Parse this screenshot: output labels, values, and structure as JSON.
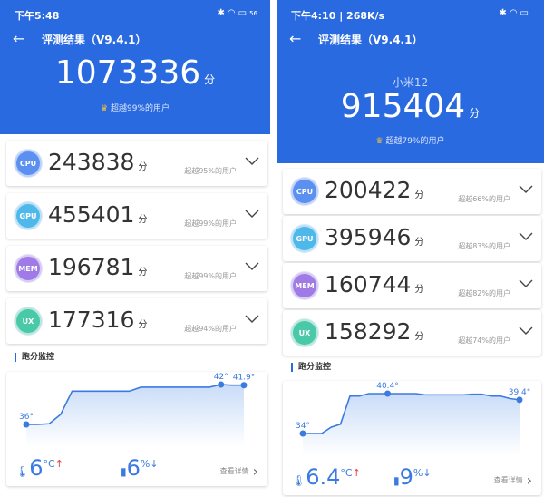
{
  "colors": {
    "header": "#2a6ae0",
    "cpu": "#5b8ff0",
    "gpu": "#4fb8ea",
    "mem": "#a07be6",
    "ux": "#49c9a8",
    "line": "#3b7ae0"
  },
  "panels": [
    {
      "status": {
        "time": "下午5:48",
        "icons": "bluetooth-icon sim-icon wifi-icon battery-icon",
        "battery": "56"
      },
      "title": "评测结果（V9.4.1）",
      "model": "",
      "total": "1073336",
      "unit": "分",
      "rank": "超越99%的用户",
      "items": [
        {
          "badge": "CPU",
          "score": "243838",
          "unit": "分",
          "pct": "超越95%的用户"
        },
        {
          "badge": "GPU",
          "score": "455401",
          "unit": "分",
          "pct": "超越99%的用户"
        },
        {
          "badge": "MEM",
          "score": "196781",
          "unit": "分",
          "pct": "超越99%的用户"
        },
        {
          "badge": "UX",
          "score": "177316",
          "unit": "分",
          "pct": "超越94%的用户"
        }
      ],
      "monitor": {
        "title": "跑分监控",
        "labels": [
          "36°",
          "42°",
          "41.9°"
        ],
        "temps": [
          36,
          36,
          36.1,
          37.5,
          41,
          41,
          41,
          41,
          41,
          41,
          41.6,
          41.6,
          41.6,
          41.6,
          41.6,
          41.6,
          41.6,
          42,
          41.9,
          41.9
        ],
        "labeled": [
          0,
          17,
          19
        ],
        "temp_rise": "6",
        "temp_unit": "°C",
        "battery_drop": "6",
        "battery_unit": "%",
        "detail": "查看详情"
      }
    },
    {
      "status": {
        "time": "下午4:10 | 268K/s",
        "icons": "alarm-icon bluetooth-icon signal-icon signal-icon wifi-icon battery-icon"
      },
      "title": "评测结果（V9.4.1）",
      "model": "小米12",
      "total": "915404",
      "unit": "分",
      "rank": "超越79%的用户",
      "items": [
        {
          "badge": "CPU",
          "score": "200422",
          "unit": "分",
          "pct": "超越66%的用户"
        },
        {
          "badge": "GPU",
          "score": "395946",
          "unit": "分",
          "pct": "超越83%的用户"
        },
        {
          "badge": "MEM",
          "score": "160744",
          "unit": "分",
          "pct": "超越82%的用户"
        },
        {
          "badge": "UX",
          "score": "158292",
          "unit": "分",
          "pct": "超越74%的用户"
        }
      ],
      "monitor": {
        "title": "跑分监控",
        "labels": [
          "34°",
          "40.4°",
          "39.4°"
        ],
        "temps": [
          34,
          34,
          34,
          35,
          35.5,
          40,
          40,
          40.4,
          40.4,
          40.4,
          40.4,
          40.4,
          40.4,
          40.2,
          40.2,
          40.2,
          40.2,
          40.2,
          40.3,
          40.3,
          40,
          40,
          39.6,
          39.4
        ],
        "labeled": [
          0,
          9,
          23
        ],
        "temp_rise": "6.4",
        "temp_unit": "°C",
        "battery_drop": "9",
        "battery_unit": "%",
        "detail": "查看详情"
      }
    }
  ]
}
